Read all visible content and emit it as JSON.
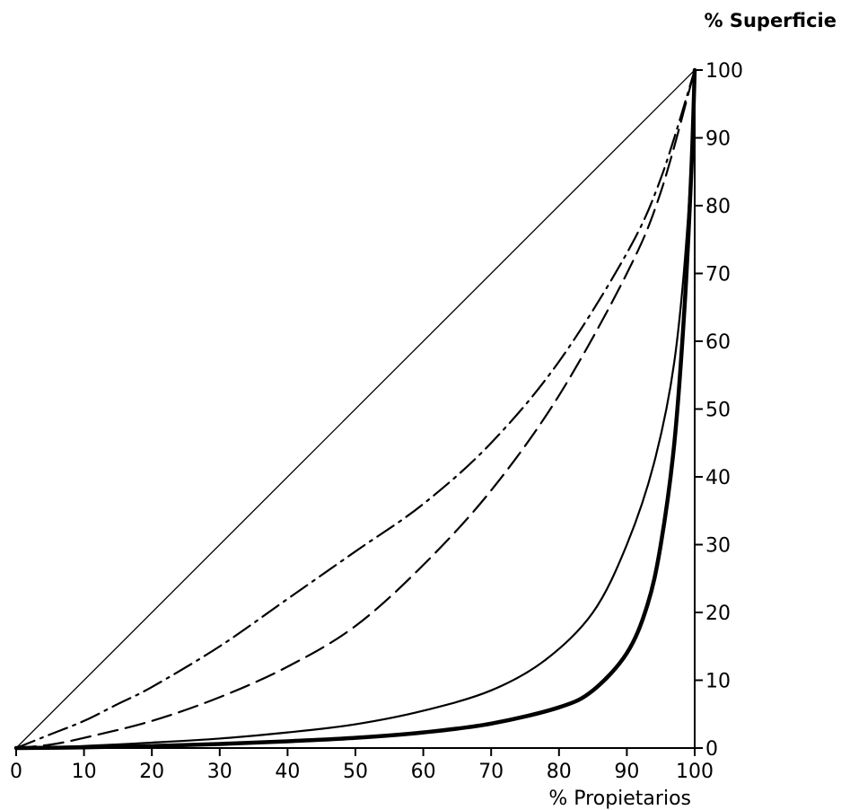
{
  "chart_data": {
    "type": "line",
    "title": "",
    "xlabel": "% Propietarios",
    "ylabel": "% Superficie",
    "xlim": [
      0,
      100
    ],
    "ylim": [
      0,
      100
    ],
    "x_ticks": [
      0,
      10,
      20,
      30,
      40,
      50,
      60,
      70,
      80,
      90,
      100
    ],
    "y_ticks": [
      0,
      10,
      20,
      30,
      40,
      50,
      60,
      70,
      80,
      90,
      100
    ],
    "grid": false,
    "legend": "none",
    "series": [
      {
        "style": "solid-thin",
        "points": [
          [
            0,
            0
          ],
          [
            100,
            100
          ]
        ]
      },
      {
        "style": "dash-dot",
        "points": [
          [
            0,
            0
          ],
          [
            5,
            2
          ],
          [
            10,
            4
          ],
          [
            15,
            6.5
          ],
          [
            20,
            9
          ],
          [
            30,
            15
          ],
          [
            40,
            22
          ],
          [
            50,
            29
          ],
          [
            60,
            36
          ],
          [
            70,
            45
          ],
          [
            80,
            57
          ],
          [
            90,
            73
          ],
          [
            95,
            84
          ],
          [
            100,
            100
          ]
        ]
      },
      {
        "style": "dashed",
        "points": [
          [
            0,
            0
          ],
          [
            5,
            0.5
          ],
          [
            10,
            1.5
          ],
          [
            20,
            4
          ],
          [
            30,
            7.5
          ],
          [
            40,
            12
          ],
          [
            50,
            18
          ],
          [
            60,
            27
          ],
          [
            70,
            38
          ],
          [
            80,
            52
          ],
          [
            90,
            70
          ],
          [
            95,
            82
          ],
          [
            100,
            100
          ]
        ]
      },
      {
        "style": "solid-medium",
        "points": [
          [
            0,
            0
          ],
          [
            10,
            0.3
          ],
          [
            20,
            0.8
          ],
          [
            30,
            1.4
          ],
          [
            40,
            2.3
          ],
          [
            50,
            3.5
          ],
          [
            60,
            5.5
          ],
          [
            70,
            8.5
          ],
          [
            78,
            13
          ],
          [
            85,
            20
          ],
          [
            90,
            30
          ],
          [
            94,
            42
          ],
          [
            97,
            57
          ],
          [
            99,
            78
          ],
          [
            100,
            100
          ]
        ]
      },
      {
        "style": "solid-thick",
        "points": [
          [
            0,
            0
          ],
          [
            10,
            0.1
          ],
          [
            20,
            0.3
          ],
          [
            30,
            0.6
          ],
          [
            40,
            1
          ],
          [
            50,
            1.5
          ],
          [
            60,
            2.3
          ],
          [
            70,
            3.6
          ],
          [
            80,
            6
          ],
          [
            85,
            8.5
          ],
          [
            90,
            14
          ],
          [
            93,
            21
          ],
          [
            95,
            30
          ],
          [
            97,
            45
          ],
          [
            98.5,
            65
          ],
          [
            99.5,
            85
          ],
          [
            100,
            100
          ]
        ]
      }
    ]
  }
}
